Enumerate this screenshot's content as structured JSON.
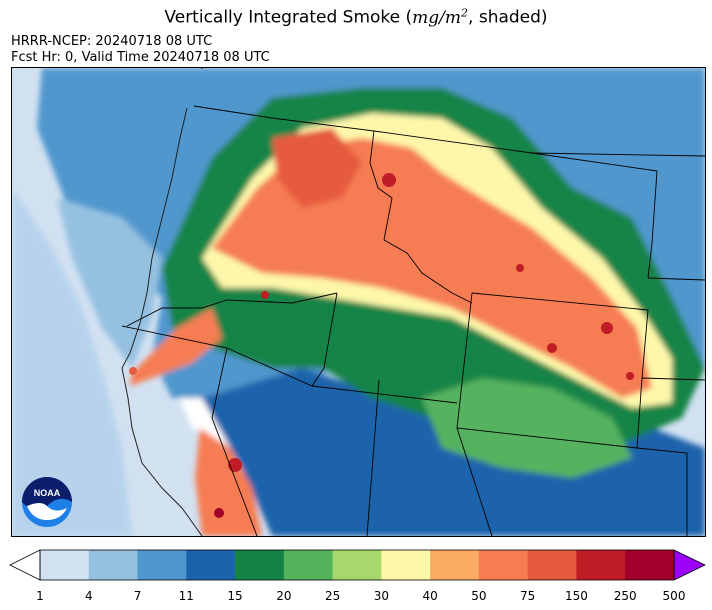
{
  "title": {
    "text_before": "Vertically Integrated Smoke (",
    "unit_base": "mg/m",
    "unit_exp": "2",
    "text_after": ", shaded)"
  },
  "model_line": "HRRR-NCEP: 20240718 08 UTC",
  "forecast_line": "Fcst Hr: 0, Valid Time 20240718 08 UTC",
  "logo": {
    "text": "NOAA"
  },
  "colorbar": {
    "ticks": [
      "1",
      "4",
      "7",
      "11",
      "15",
      "20",
      "25",
      "30",
      "40",
      "50",
      "75",
      "150",
      "250",
      "500"
    ],
    "colors": [
      "#d2e1f1",
      "#95c1e1",
      "#4f97cd",
      "#1b63ab",
      "#138446",
      "#55b35e",
      "#a7d86c",
      "#fef7aa",
      "#fbab64",
      "#f67d52",
      "#e65a40",
      "#c01d26",
      "#a3002c"
    ],
    "under_color": "#ffffff",
    "over_color": "#9c00f7"
  },
  "colors": {
    "frame": "#000000",
    "borders": "#000000",
    "noaa_blue": "#1e7fe8",
    "noaa_navy": "#0b1d6b"
  }
}
